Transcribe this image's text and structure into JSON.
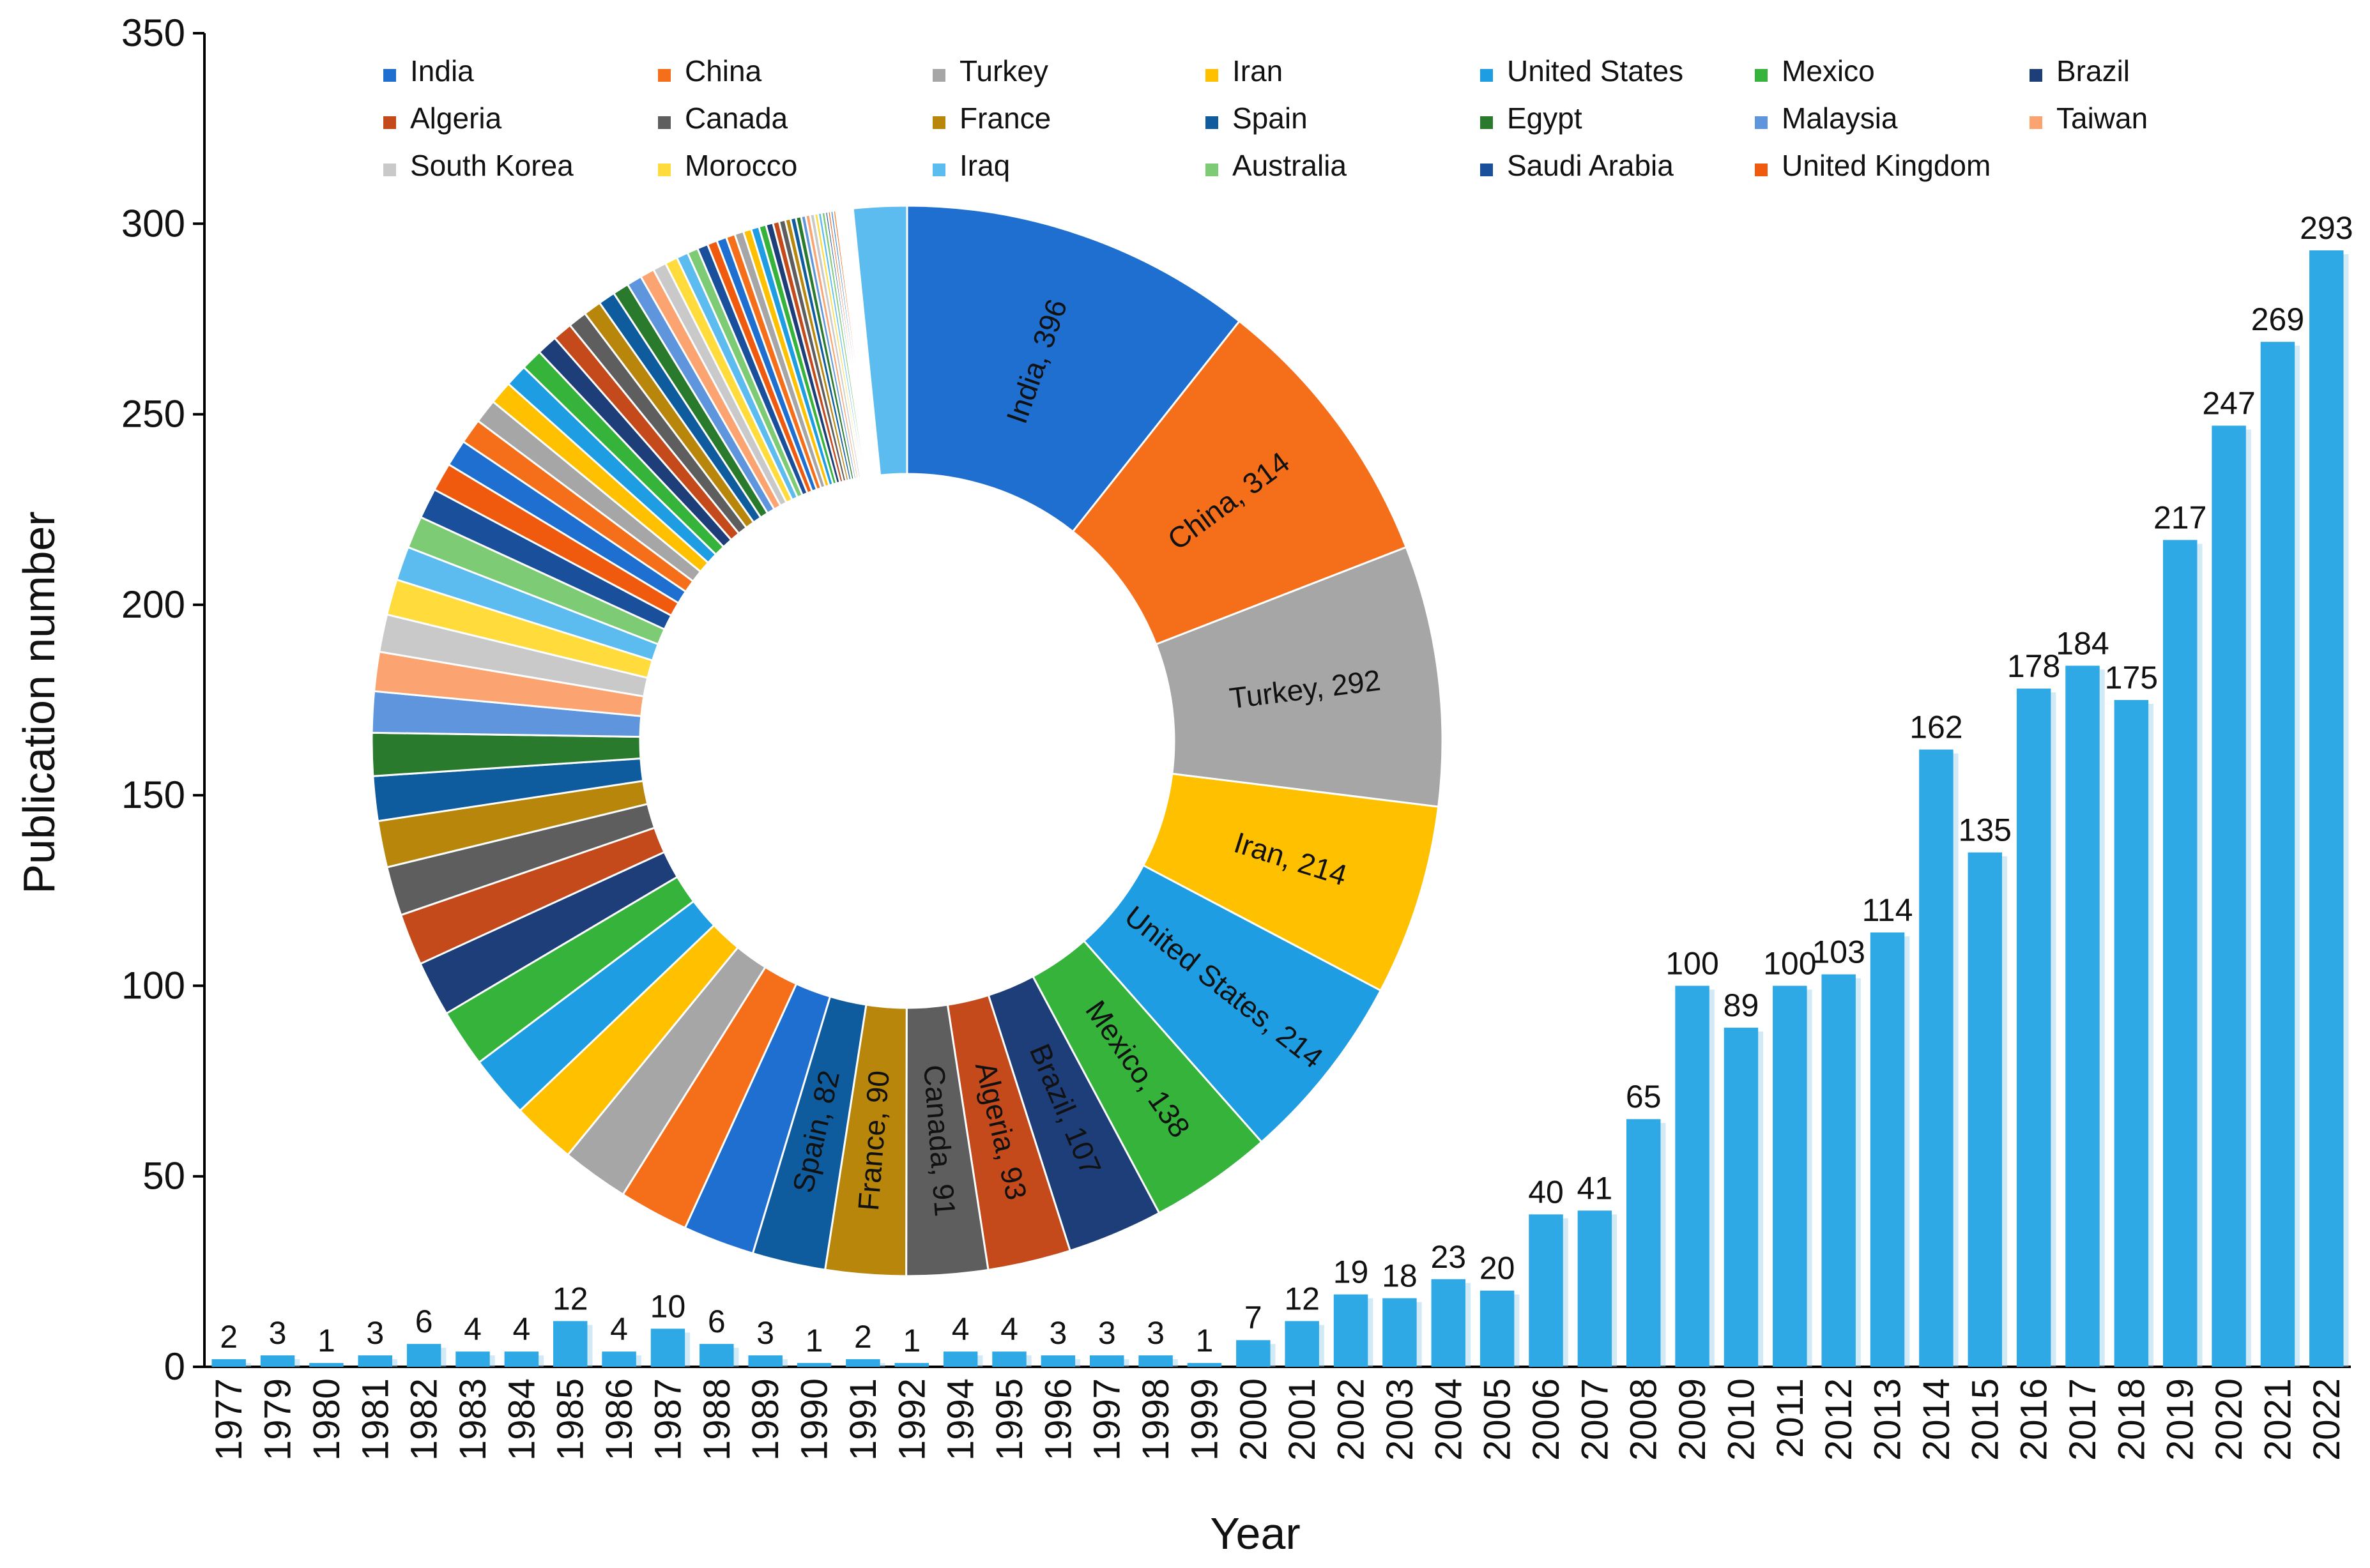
{
  "chart_data": {
    "type": "bar",
    "xlabel": "Year",
    "ylabel": "Publication number",
    "ylim": [
      0,
      350
    ],
    "yticks": [
      0,
      50,
      100,
      150,
      200,
      250,
      300,
      350
    ],
    "bar_color": "#2EA9E6",
    "categories": [
      "1977",
      "1979",
      "1980",
      "1981",
      "1982",
      "1983",
      "1984",
      "1985",
      "1986",
      "1987",
      "1988",
      "1989",
      "1990",
      "1991",
      "1992",
      "1994",
      "1995",
      "1996",
      "1997",
      "1998",
      "1999",
      "2000",
      "2001",
      "2002",
      "2003",
      "2004",
      "2005",
      "2006",
      "2007",
      "2008",
      "2009",
      "2010",
      "2011",
      "2012",
      "2013",
      "2014",
      "2015",
      "2016",
      "2017",
      "2018",
      "2019",
      "2020",
      "2021",
      "2022"
    ],
    "values": [
      2,
      3,
      1,
      3,
      6,
      4,
      4,
      12,
      4,
      10,
      6,
      3,
      1,
      2,
      1,
      4,
      4,
      3,
      3,
      3,
      1,
      7,
      12,
      19,
      18,
      23,
      20,
      40,
      41,
      65,
      100,
      89,
      100,
      103,
      114,
      162,
      135,
      178,
      184,
      175,
      217,
      247,
      269,
      293
    ],
    "inset": {
      "type": "pie",
      "legend": [
        {
          "name": "India",
          "color": "#1F6FD1"
        },
        {
          "name": "China",
          "color": "#F56E1A"
        },
        {
          "name": "Turkey",
          "color": "#A6A6A6"
        },
        {
          "name": "Iran",
          "color": "#FFC000"
        },
        {
          "name": "United States",
          "color": "#1E9DE3"
        },
        {
          "name": "Mexico",
          "color": "#36B33A"
        },
        {
          "name": "Brazil",
          "color": "#1D3E78"
        },
        {
          "name": "Algeria",
          "color": "#C44A1C"
        },
        {
          "name": "Canada",
          "color": "#5E5E5E"
        },
        {
          "name": "France",
          "color": "#B8860B"
        },
        {
          "name": "Spain",
          "color": "#0E5C9E"
        },
        {
          "name": "Egypt",
          "color": "#2A7A2E"
        },
        {
          "name": "Malaysia",
          "color": "#5F95DC"
        },
        {
          "name": "Taiwan",
          "color": "#FBA472"
        },
        {
          "name": "South Korea",
          "color": "#C9C9C9"
        },
        {
          "name": "Morocco",
          "color": "#FFDB3C"
        },
        {
          "name": "Iraq",
          "color": "#5CBCEF"
        },
        {
          "name": "Australia",
          "color": "#7DCB74"
        },
        {
          "name": "Saudi Arabia",
          "color": "#1A4F9C"
        },
        {
          "name": "United Kingdom",
          "color": "#F05A0F"
        }
      ],
      "slices": [
        {
          "name": "India",
          "value": 396,
          "label": "India, 396"
        },
        {
          "name": "China",
          "value": 314,
          "label": "China, 314"
        },
        {
          "name": "Turkey",
          "value": 292,
          "label": "Turkey, 292"
        },
        {
          "name": "Iran",
          "value": 214,
          "label": "Iran, 214"
        },
        {
          "name": "United States",
          "value": 214,
          "label": "United States, 214"
        },
        {
          "name": "Mexico",
          "value": 138,
          "label": "Mexico, 138"
        },
        {
          "name": "Brazil",
          "value": 107,
          "label": "Brazil, 107"
        },
        {
          "name": "Algeria",
          "value": 93,
          "label": "Algeria, 93"
        },
        {
          "name": "Canada",
          "value": 91,
          "label": "Canada, 91"
        },
        {
          "name": "France",
          "value": 90,
          "label": "France, 90"
        },
        {
          "name": "Spain",
          "value": 82,
          "label": "Spain, 82"
        }
      ],
      "small_slices_estimated": [
        80,
        78,
        75,
        72,
        70,
        65,
        62,
        58,
        55,
        52,
        50,
        48,
        46,
        44,
        42,
        40,
        38,
        36,
        34,
        32,
        30,
        28,
        27,
        26,
        25,
        24,
        23,
        22,
        21,
        20,
        19,
        18,
        17,
        16,
        15,
        14,
        13,
        12,
        12,
        11,
        11,
        10,
        10,
        9,
        9,
        8,
        8,
        7,
        7,
        6,
        6,
        6,
        5,
        5,
        5,
        4,
        4,
        4,
        3,
        3,
        3,
        3,
        2,
        2,
        2,
        2,
        2,
        1,
        1,
        1,
        1,
        1,
        1,
        1,
        1,
        1
      ],
      "final_slice_value": 60,
      "final_slice_color": "#5CBCEF"
    }
  }
}
